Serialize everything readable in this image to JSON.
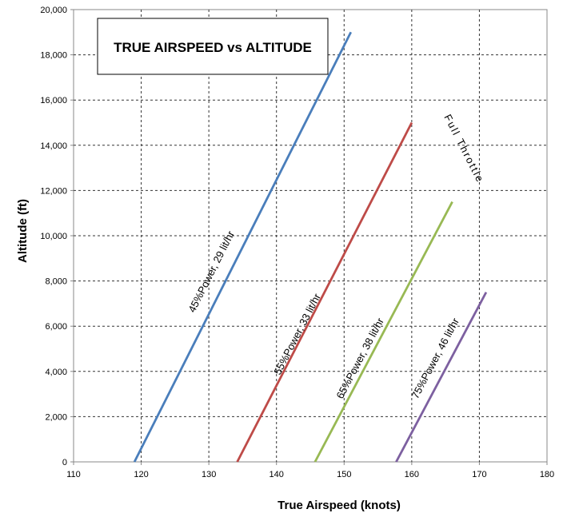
{
  "chart_data": {
    "type": "line",
    "title": "TRUE AIRSPEED vs ALTITUDE",
    "xlabel": "True Airspeed (knots)",
    "ylabel": "Altitude (ft)",
    "xlim": [
      110,
      180
    ],
    "ylim": [
      0,
      20000
    ],
    "x_ticks": [
      110,
      120,
      130,
      140,
      150,
      160,
      170,
      180
    ],
    "y_ticks": [
      0,
      2000,
      4000,
      6000,
      8000,
      10000,
      12000,
      14000,
      16000,
      18000,
      20000
    ],
    "y_tick_labels": [
      "0",
      "2,000",
      "4,000",
      "6,000",
      "8,000",
      "10,000",
      "12,000",
      "14,000",
      "16,000",
      "18,000",
      "20,000"
    ],
    "grid": true,
    "legend": "none",
    "series": [
      {
        "name": "45%Power, 29 lit/hr",
        "color": "#4a7ebb",
        "points": [
          [
            119,
            0
          ],
          [
            151,
            19000
          ]
        ]
      },
      {
        "name": "55%Power, 33 lit/hr",
        "color": "#be4b48",
        "points": [
          [
            134.2,
            0
          ],
          [
            160,
            15000
          ]
        ]
      },
      {
        "name": "65%Power, 38 lit/hr",
        "color": "#98b954",
        "points": [
          [
            145.7,
            0
          ],
          [
            166,
            11500
          ]
        ]
      },
      {
        "name": "75%Power, 46 lit/hr",
        "color": "#7d60a0",
        "points": [
          [
            157.7,
            0
          ],
          [
            171,
            7500
          ]
        ]
      }
    ],
    "annotations": [
      {
        "text": "Full Throttle"
      }
    ]
  }
}
